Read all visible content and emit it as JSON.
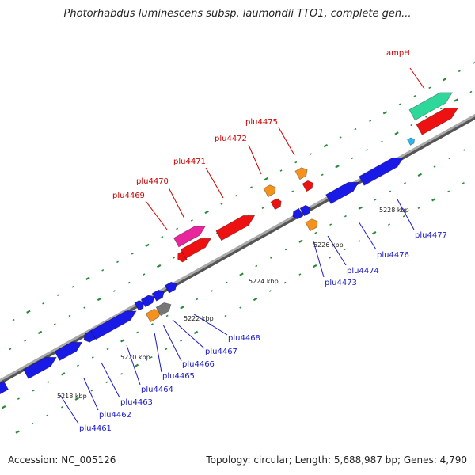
{
  "header": {
    "title": "Photorhabdus luminescens subsp. laumondii TTO1, complete gen..."
  },
  "footer": {
    "accession": "Accession: NC_005126",
    "summary": "Topology: circular; Length: 5,688,987 bp; Genes: 4,790"
  },
  "colors": {
    "red": "#ee1111",
    "blue": "#1a1ae6",
    "orange": "#f5921e",
    "pink": "#e8259c",
    "mint": "#2ed79a",
    "gray": "#777777",
    "cyan": "#2bb8ee",
    "label_top": "#d00000",
    "label_bottom": "#1a1acc",
    "backbone": "#888888"
  },
  "scale_labels": [
    {
      "text": "5218 kbp"
    },
    {
      "text": "5220 kbp"
    },
    {
      "text": "5222 kbp"
    },
    {
      "text": "5224 kbp"
    },
    {
      "text": "5226 kbp"
    },
    {
      "text": "5228 kbp"
    }
  ],
  "top_labels": [
    {
      "text": "ampH"
    },
    {
      "text": "plu4475"
    },
    {
      "text": "plu4472"
    },
    {
      "text": "plu4471"
    },
    {
      "text": "plu4470"
    },
    {
      "text": "plu4469"
    }
  ],
  "bottom_labels": [
    {
      "text": "plu4477"
    },
    {
      "text": "plu4476"
    },
    {
      "text": "plu4474"
    },
    {
      "text": "plu4473"
    },
    {
      "text": "plu4468"
    },
    {
      "text": "plu4467"
    },
    {
      "text": "plu4466"
    },
    {
      "text": "plu4465"
    },
    {
      "text": "plu4464"
    },
    {
      "text": "plu4463"
    },
    {
      "text": "plu4462"
    },
    {
      "text": "plu4461"
    }
  ]
}
